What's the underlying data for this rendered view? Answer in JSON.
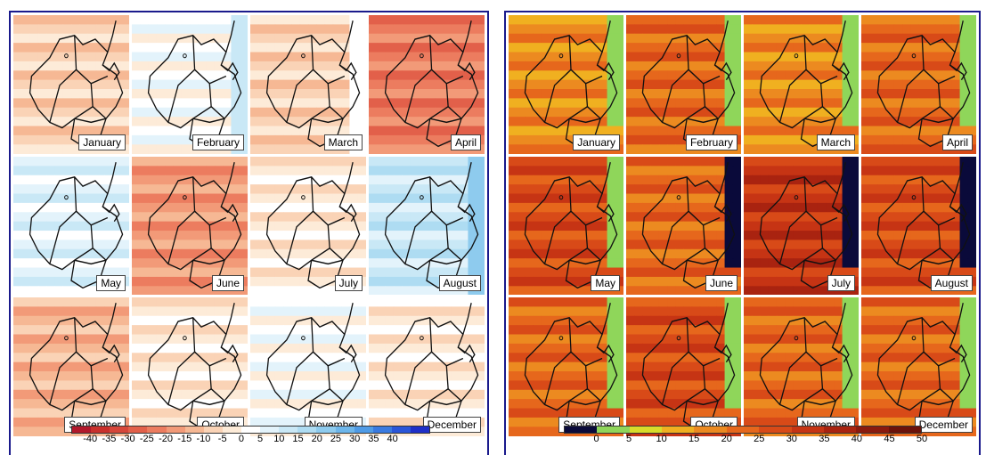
{
  "left_map": {
    "months": [
      "January",
      "February",
      "March",
      "April",
      "May",
      "June",
      "July",
      "August",
      "September",
      "October",
      "November",
      "December"
    ],
    "legend": {
      "ticks": [
        "-40",
        "-35",
        "-30",
        "-25",
        "-20",
        "-15",
        "-10",
        "-5",
        "0",
        "5",
        "10",
        "15",
        "20",
        "25",
        "30",
        "35",
        "40"
      ],
      "colors": [
        "#b2182b",
        "#c9302c",
        "#d6463a",
        "#e2604a",
        "#ec7c5f",
        "#f29a78",
        "#f6b894",
        "#fad3b6",
        "#fdebd8",
        "#ffffff",
        "#e3f3fb",
        "#c9e8f6",
        "#aedcf2",
        "#8ecbee",
        "#6eb6ea",
        "#4f9be6",
        "#3a7ae0",
        "#2a55d8",
        "#1f2fc8"
      ]
    }
  },
  "right_map": {
    "months": [
      "January",
      "February",
      "March",
      "April",
      "May",
      "June",
      "July",
      "August",
      "September",
      "October",
      "November",
      "December"
    ],
    "legend": {
      "ticks": [
        "0",
        "5",
        "10",
        "15",
        "20",
        "25",
        "30",
        "35",
        "40",
        "45",
        "50"
      ],
      "colors": [
        "#0a0a3a",
        "#8fd65a",
        "#d8dc2a",
        "#f0b020",
        "#ec8a20",
        "#e6671c",
        "#d84a18",
        "#c63414",
        "#a92310",
        "#8a1a0e",
        "#6b120a"
      ]
    }
  }
}
